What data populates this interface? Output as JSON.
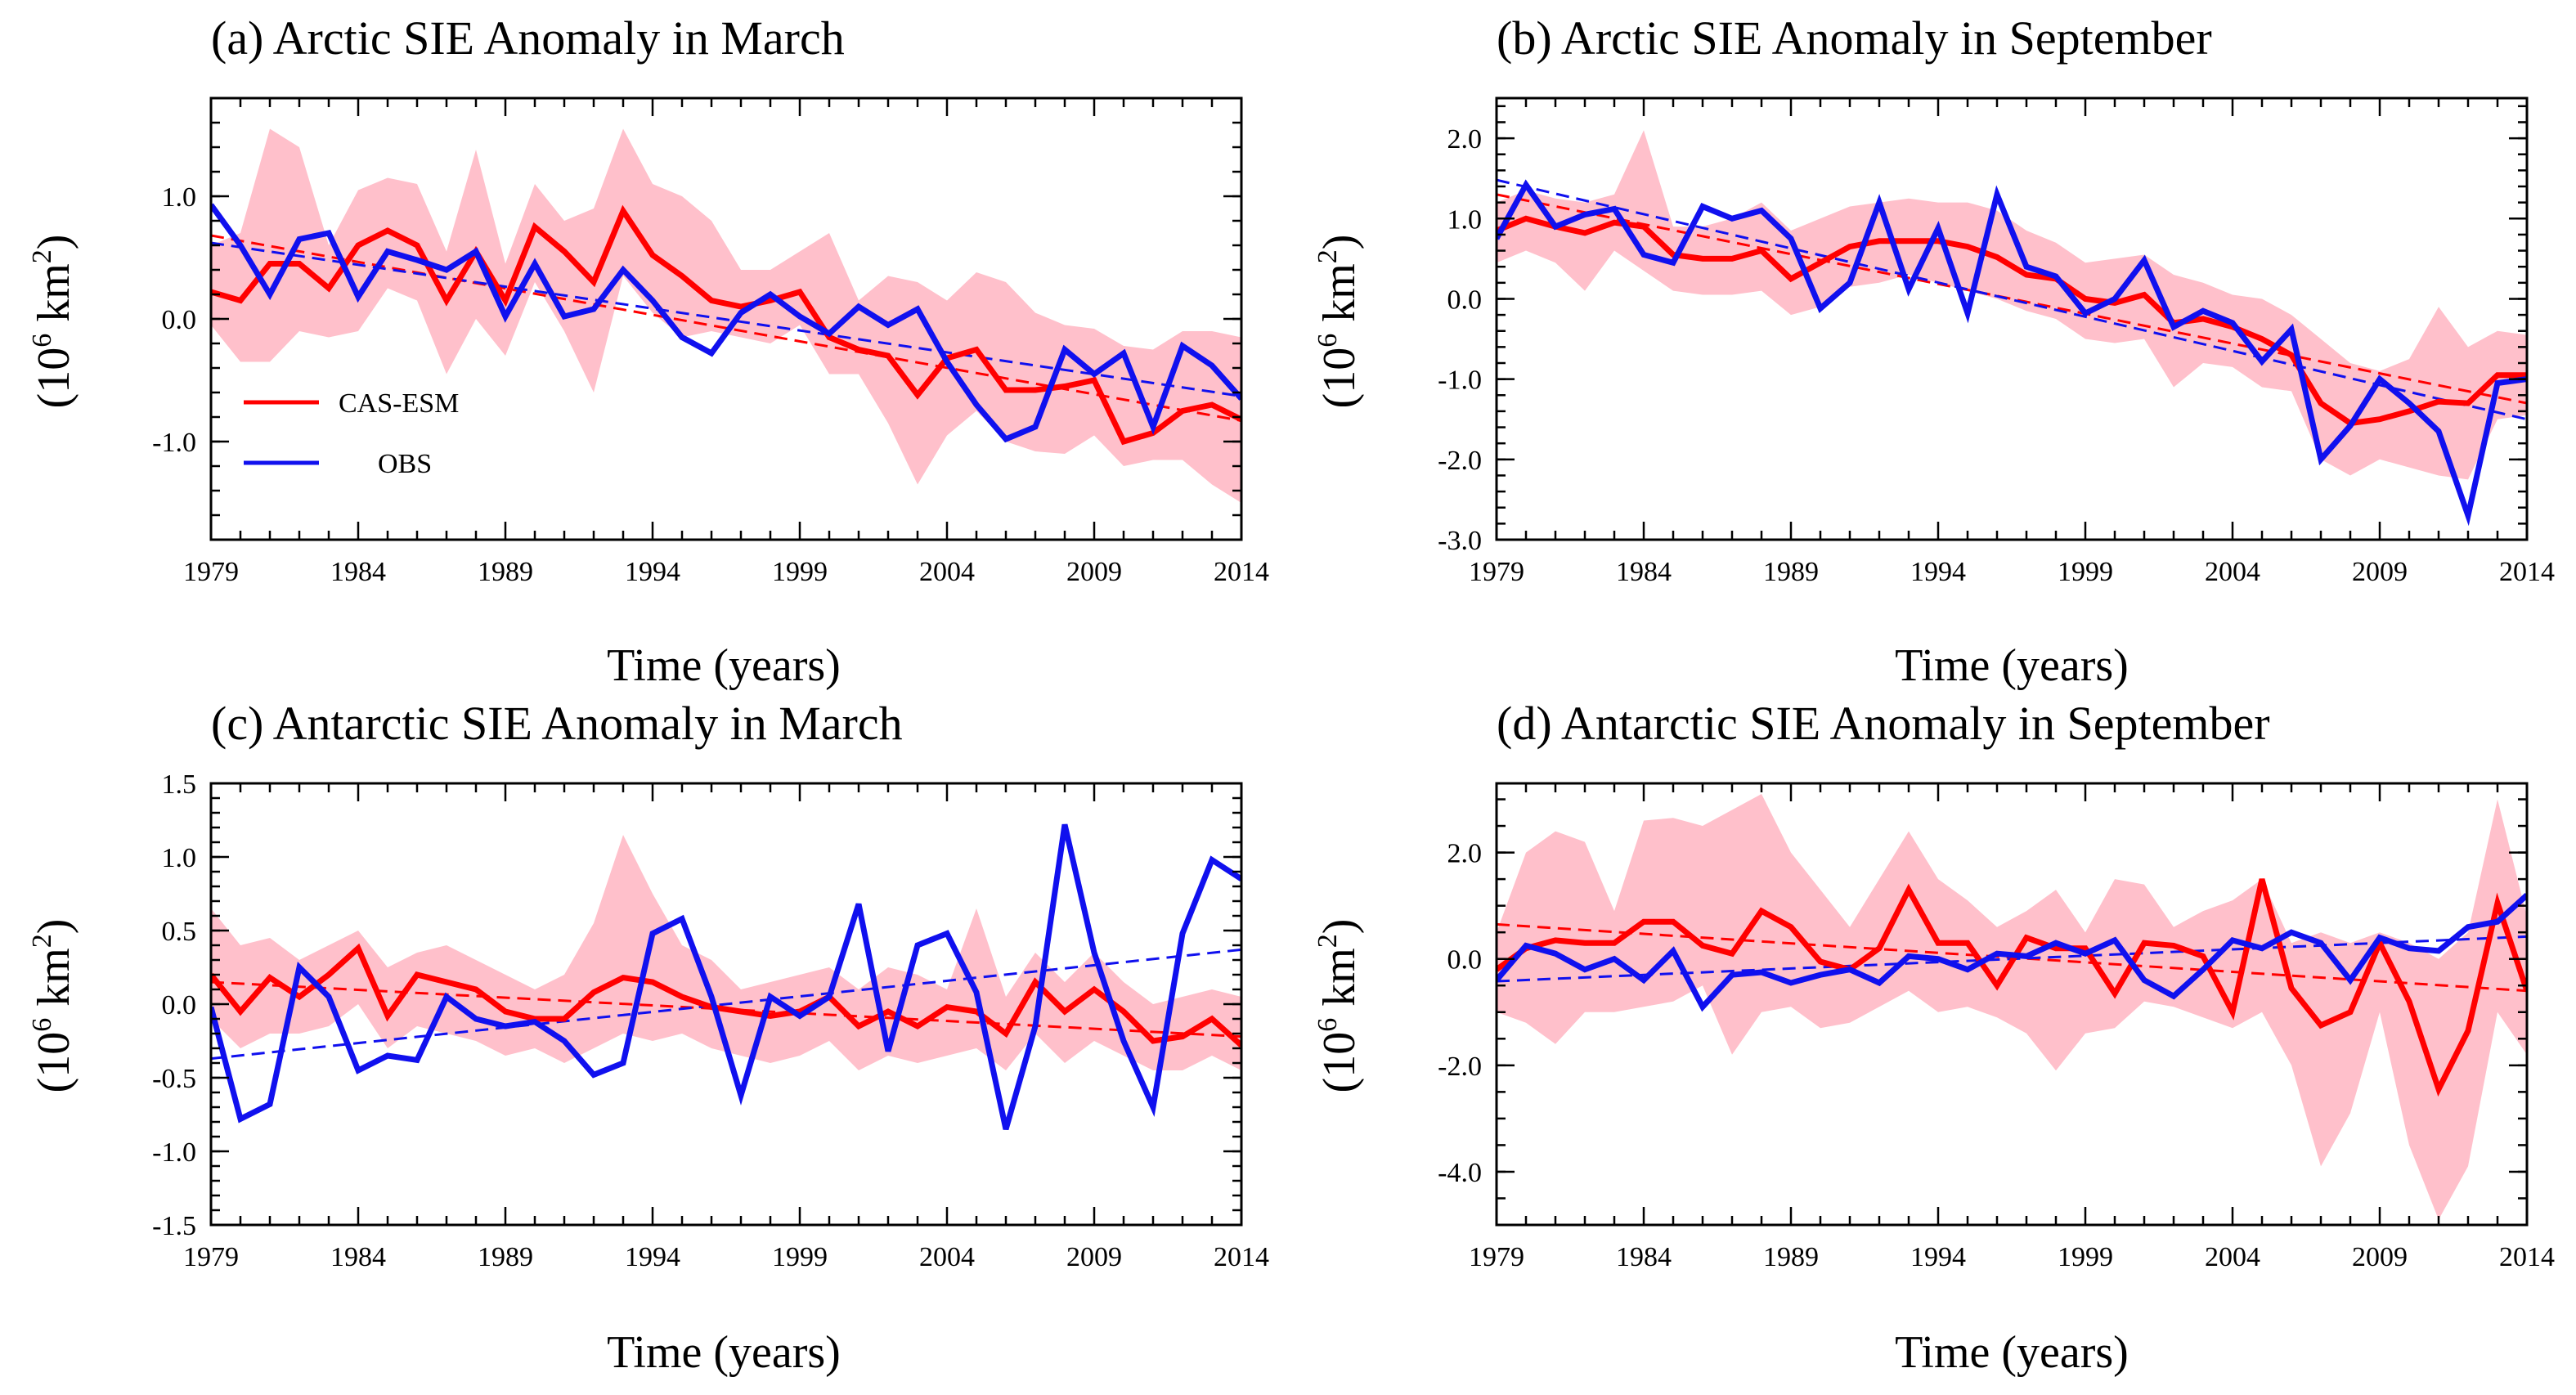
{
  "colors": {
    "model": "#ff0000",
    "obs": "#1010ee",
    "spread": "#ffc0cb"
  },
  "legend": {
    "model": "CAS-ESM",
    "obs": "OBS"
  },
  "chart_data": [
    {
      "type": "line",
      "title": "(a) Arctic SIE Anomaly in March",
      "xlabel": "Time (years)",
      "ylabel": "(10^6 km^2)",
      "xlim": [
        1979,
        2014
      ],
      "ylim": [
        -1.8,
        1.8
      ],
      "xticks": [
        1979,
        1984,
        1989,
        1994,
        1999,
        2004,
        2009,
        2014
      ],
      "xtick_labels": [
        "1979",
        "1984",
        "1989",
        "1994",
        "1999",
        "2004",
        "2009",
        "2014"
      ],
      "yticks": [
        1.0,
        0.0,
        -1.0
      ],
      "ytick_labels": [
        "1.0",
        "0.0",
        "-1.0"
      ],
      "yminor_step": 0.2,
      "has_legend": true,
      "x": [
        1979,
        1980,
        1981,
        1982,
        1983,
        1984,
        1985,
        1986,
        1987,
        1988,
        1989,
        1990,
        1991,
        1992,
        1993,
        1994,
        1995,
        1996,
        1997,
        1998,
        1999,
        2000,
        2001,
        2002,
        2003,
        2004,
        2005,
        2006,
        2007,
        2008,
        2009,
        2010,
        2011,
        2012,
        2013,
        2014
      ],
      "series": [
        {
          "name": "CAS-ESM",
          "values": [
            0.22,
            0.15,
            0.45,
            0.45,
            0.25,
            0.6,
            0.72,
            0.6,
            0.15,
            0.55,
            0.15,
            0.75,
            0.55,
            0.3,
            0.88,
            0.52,
            0.35,
            0.15,
            0.1,
            0.15,
            0.22,
            -0.15,
            -0.25,
            -0.3,
            -0.62,
            -0.32,
            -0.25,
            -0.58,
            -0.58,
            -0.55,
            -0.5,
            -1.0,
            -0.93,
            -0.75,
            -0.7,
            -0.82
          ]
        },
        {
          "name": "OBS",
          "values": [
            0.93,
            0.6,
            0.2,
            0.65,
            0.7,
            0.18,
            0.55,
            0.48,
            0.4,
            0.55,
            0.02,
            0.45,
            0.02,
            0.08,
            0.4,
            0.15,
            -0.15,
            -0.28,
            0.05,
            0.2,
            0.02,
            -0.12,
            0.1,
            -0.05,
            0.08,
            -0.35,
            -0.7,
            -0.98,
            -0.88,
            -0.25,
            -0.45,
            -0.28,
            -0.88,
            -0.22,
            -0.38,
            -0.65
          ]
        },
        {
          "name": "CAS-ESM range upper",
          "values": [
            0.6,
            0.7,
            1.55,
            1.4,
            0.6,
            1.05,
            1.15,
            1.1,
            0.55,
            1.38,
            0.45,
            1.1,
            0.8,
            0.9,
            1.55,
            1.1,
            1.0,
            0.8,
            0.4,
            0.4,
            0.55,
            0.7,
            0.15,
            0.35,
            0.3,
            0.15,
            0.38,
            0.3,
            0.05,
            -0.05,
            -0.08,
            -0.22,
            -0.25,
            -0.1,
            -0.1,
            -0.15
          ]
        },
        {
          "name": "CAS-ESM range lower",
          "values": [
            -0.05,
            -0.35,
            -0.35,
            -0.1,
            -0.15,
            -0.1,
            0.25,
            0.15,
            -0.45,
            0.0,
            -0.3,
            0.3,
            -0.1,
            -0.6,
            0.35,
            0.05,
            -0.15,
            -0.1,
            -0.15,
            -0.2,
            -0.05,
            -0.45,
            -0.45,
            -0.85,
            -1.35,
            -0.95,
            -0.75,
            -1.0,
            -1.08,
            -1.1,
            -0.95,
            -1.2,
            -1.15,
            -1.15,
            -1.35,
            -1.5
          ]
        }
      ],
      "trend_lines": [
        {
          "name": "CAS-ESM trend",
          "x": [
            1979,
            2014
          ],
          "values": [
            0.68,
            -0.83
          ]
        },
        {
          "name": "OBS trend",
          "x": [
            1979,
            2014
          ],
          "values": [
            0.62,
            -0.63
          ]
        }
      ]
    },
    {
      "type": "line",
      "title": "(b) Arctic SIE Anomaly in September",
      "xlabel": "Time (years)",
      "ylabel": "(10^6 km^2)",
      "xlim": [
        1979,
        2014
      ],
      "ylim": [
        -3.0,
        2.5
      ],
      "xticks": [
        1979,
        1984,
        1989,
        1994,
        1999,
        2004,
        2009,
        2014
      ],
      "xtick_labels": [
        "1979",
        "1984",
        "1989",
        "1994",
        "1999",
        "2004",
        "2009",
        "2014"
      ],
      "yticks": [
        2.0,
        1.0,
        0.0,
        -1.0,
        -2.0,
        -3.0
      ],
      "ytick_labels": [
        "2.0",
        "1.0",
        "0.0",
        "-1.0",
        "-2.0",
        "-3.0"
      ],
      "yminor_step": 0.2,
      "has_legend": false,
      "x": [
        1979,
        1980,
        1981,
        1982,
        1983,
        1984,
        1985,
        1986,
        1987,
        1988,
        1989,
        1990,
        1991,
        1992,
        1993,
        1994,
        1995,
        1996,
        1997,
        1998,
        1999,
        2000,
        2001,
        2002,
        2003,
        2004,
        2005,
        2006,
        2007,
        2008,
        2009,
        2010,
        2011,
        2012,
        2013,
        2014
      ],
      "series": [
        {
          "name": "CAS-ESM",
          "values": [
            0.85,
            1.0,
            0.9,
            0.82,
            0.95,
            0.9,
            0.55,
            0.5,
            0.5,
            0.6,
            0.25,
            0.45,
            0.65,
            0.72,
            0.72,
            0.72,
            0.65,
            0.52,
            0.3,
            0.25,
            0.0,
            -0.05,
            0.05,
            -0.3,
            -0.25,
            -0.35,
            -0.5,
            -0.7,
            -1.3,
            -1.55,
            -1.5,
            -1.4,
            -1.28,
            -1.3,
            -0.95,
            -0.95
          ]
        },
        {
          "name": "OBS",
          "values": [
            0.75,
            1.42,
            0.9,
            1.05,
            1.12,
            0.55,
            0.45,
            1.15,
            1.0,
            1.1,
            0.75,
            -0.12,
            0.2,
            1.2,
            0.12,
            0.88,
            -0.18,
            1.3,
            0.4,
            0.28,
            -0.18,
            0.0,
            0.48,
            -0.35,
            -0.15,
            -0.3,
            -0.78,
            -0.38,
            -2.0,
            -1.58,
            -1.0,
            -1.3,
            -1.65,
            -2.7,
            -1.05,
            -1.0
          ]
        },
        {
          "name": "CAS-ESM range upper",
          "values": [
            1.2,
            1.35,
            1.25,
            1.2,
            1.3,
            2.1,
            0.9,
            0.9,
            1.0,
            1.2,
            0.85,
            1.0,
            1.15,
            1.2,
            1.25,
            1.2,
            1.2,
            1.1,
            0.85,
            0.7,
            0.45,
            0.5,
            0.55,
            0.3,
            0.2,
            0.05,
            0.0,
            -0.2,
            -0.5,
            -0.8,
            -0.9,
            -0.75,
            -0.1,
            -0.6,
            -0.4,
            -0.45
          ]
        },
        {
          "name": "CAS-ESM range lower",
          "values": [
            0.45,
            0.6,
            0.45,
            0.1,
            0.6,
            0.35,
            0.1,
            0.05,
            0.05,
            0.1,
            -0.2,
            -0.1,
            0.15,
            0.2,
            0.3,
            0.2,
            0.1,
            0.0,
            -0.15,
            -0.25,
            -0.5,
            -0.55,
            -0.5,
            -1.1,
            -0.8,
            -0.85,
            -1.1,
            -1.15,
            -2.0,
            -2.2,
            -2.0,
            -2.1,
            -2.2,
            -2.25,
            -1.5,
            -1.45
          ]
        }
      ],
      "trend_lines": [
        {
          "name": "CAS-ESM trend",
          "x": [
            1979,
            2014
          ],
          "values": [
            1.3,
            -1.3
          ]
        },
        {
          "name": "OBS trend",
          "x": [
            1979,
            2014
          ],
          "values": [
            1.48,
            -1.5
          ]
        }
      ]
    },
    {
      "type": "line",
      "title": "(c) Antarctic SIE Anomaly in March",
      "xlabel": "Time (years)",
      "ylabel": "(10^6 km^2)",
      "xlim": [
        1979,
        2014
      ],
      "ylim": [
        -1.5,
        1.5
      ],
      "xticks": [
        1979,
        1984,
        1989,
        1994,
        1999,
        2004,
        2009,
        2014
      ],
      "xtick_labels": [
        "1979",
        "1984",
        "1989",
        "1994",
        "1999",
        "2004",
        "2009",
        "2014"
      ],
      "yticks": [
        1.5,
        1.0,
        0.5,
        0.0,
        -0.5,
        -1.0,
        -1.5
      ],
      "ytick_labels": [
        "1.5",
        "1.0",
        "0.5",
        "0.0",
        "-0.5",
        "-1.0",
        "-1.5"
      ],
      "yminor_step": 0.1,
      "has_legend": false,
      "x": [
        1979,
        1980,
        1981,
        1982,
        1983,
        1984,
        1985,
        1986,
        1987,
        1988,
        1989,
        1990,
        1991,
        1992,
        1993,
        1994,
        1995,
        1996,
        1997,
        1998,
        1999,
        2000,
        2001,
        2002,
        2003,
        2004,
        2005,
        2006,
        2007,
        2008,
        2009,
        2010,
        2011,
        2012,
        2013,
        2014
      ],
      "series": [
        {
          "name": "CAS-ESM",
          "values": [
            0.2,
            -0.05,
            0.18,
            0.05,
            0.2,
            0.38,
            -0.08,
            0.2,
            0.15,
            0.1,
            -0.05,
            -0.1,
            -0.1,
            0.08,
            0.18,
            0.15,
            0.05,
            -0.02,
            -0.05,
            -0.08,
            -0.05,
            0.05,
            -0.15,
            -0.05,
            -0.15,
            -0.02,
            -0.05,
            -0.2,
            0.15,
            -0.05,
            0.1,
            -0.05,
            -0.25,
            -0.22,
            -0.1,
            -0.28
          ]
        },
        {
          "name": "OBS",
          "values": [
            -0.02,
            -0.78,
            -0.68,
            0.25,
            0.05,
            -0.45,
            -0.35,
            -0.38,
            0.05,
            -0.1,
            -0.15,
            -0.12,
            -0.25,
            -0.48,
            -0.4,
            0.48,
            0.58,
            0.05,
            -0.62,
            0.05,
            -0.08,
            0.05,
            0.68,
            -0.32,
            0.4,
            0.48,
            0.08,
            -0.85,
            -0.15,
            1.22,
            0.35,
            -0.25,
            -0.7,
            0.48,
            0.98,
            0.85
          ]
        },
        {
          "name": "CAS-ESM range upper",
          "values": [
            0.65,
            0.4,
            0.45,
            0.3,
            0.4,
            0.5,
            0.25,
            0.35,
            0.4,
            0.3,
            0.2,
            0.1,
            0.2,
            0.55,
            1.15,
            0.75,
            0.4,
            0.3,
            0.1,
            0.15,
            0.2,
            0.25,
            0.1,
            0.25,
            0.2,
            0.1,
            0.65,
            0.05,
            0.35,
            0.15,
            0.35,
            0.15,
            0.0,
            0.05,
            0.1,
            0.05
          ]
        },
        {
          "name": "CAS-ESM range lower",
          "values": [
            -0.1,
            -0.3,
            -0.2,
            -0.2,
            -0.15,
            0.0,
            -0.3,
            -0.15,
            -0.2,
            -0.25,
            -0.35,
            -0.3,
            -0.4,
            -0.3,
            -0.2,
            -0.25,
            -0.2,
            -0.3,
            -0.35,
            -0.4,
            -0.35,
            -0.25,
            -0.45,
            -0.35,
            -0.4,
            -0.35,
            -0.3,
            -0.45,
            -0.2,
            -0.4,
            -0.25,
            -0.35,
            -0.45,
            -0.45,
            -0.35,
            -0.45
          ]
        }
      ],
      "trend_lines": [
        {
          "name": "CAS-ESM trend",
          "x": [
            1979,
            2014
          ],
          "values": [
            0.15,
            -0.22
          ]
        },
        {
          "name": "OBS trend",
          "x": [
            1979,
            2014
          ],
          "values": [
            -0.37,
            0.37
          ]
        }
      ]
    },
    {
      "type": "line",
      "title": "(d) Antarctic SIE Anomaly in September",
      "xlabel": "Time (years)",
      "ylabel": "(10^6 km^2)",
      "xlim": [
        1979,
        2014
      ],
      "ylim": [
        -5.0,
        3.3
      ],
      "xticks": [
        1979,
        1984,
        1989,
        1994,
        1999,
        2004,
        2009,
        2014
      ],
      "xtick_labels": [
        "1979",
        "1984",
        "1989",
        "1994",
        "1999",
        "2004",
        "2009",
        "2014"
      ],
      "yticks": [
        2.0,
        0.0,
        -2.0,
        -4.0
      ],
      "ytick_labels": [
        "2.0",
        "0.0",
        "-2.0",
        "-4.0"
      ],
      "yminor_step": 0.5,
      "has_legend": false,
      "x": [
        1979,
        1980,
        1981,
        1982,
        1983,
        1984,
        1985,
        1986,
        1987,
        1988,
        1989,
        1990,
        1991,
        1992,
        1993,
        1994,
        1995,
        1996,
        1997,
        1998,
        1999,
        2000,
        2001,
        2002,
        2003,
        2004,
        2005,
        2006,
        2007,
        2008,
        2009,
        2010,
        2011,
        2012,
        2013,
        2014
      ],
      "series": [
        {
          "name": "CAS-ESM",
          "values": [
            -0.2,
            0.2,
            0.35,
            0.3,
            0.3,
            0.7,
            0.7,
            0.25,
            0.1,
            0.9,
            0.6,
            -0.05,
            -0.2,
            0.2,
            1.3,
            0.3,
            0.3,
            -0.5,
            0.4,
            0.2,
            0.2,
            -0.65,
            0.3,
            0.25,
            0.05,
            -1.0,
            1.5,
            -0.55,
            -1.25,
            -1.0,
            0.3,
            -0.8,
            -2.45,
            -1.35,
            1.05,
            -0.6
          ]
        },
        {
          "name": "OBS",
          "values": [
            -0.4,
            0.25,
            0.1,
            -0.2,
            0.0,
            -0.4,
            0.15,
            -0.9,
            -0.3,
            -0.25,
            -0.45,
            -0.3,
            -0.2,
            -0.45,
            0.05,
            0.0,
            -0.2,
            0.1,
            0.05,
            0.3,
            0.1,
            0.35,
            -0.4,
            -0.7,
            -0.2,
            0.35,
            0.2,
            0.5,
            0.3,
            -0.4,
            0.4,
            0.2,
            0.15,
            0.6,
            0.7,
            1.2
          ]
        },
        {
          "name": "CAS-ESM range upper",
          "values": [
            0.5,
            2.0,
            2.4,
            2.2,
            0.9,
            2.6,
            2.65,
            2.5,
            2.8,
            3.1,
            2.0,
            1.3,
            0.6,
            1.5,
            2.4,
            1.5,
            1.1,
            0.6,
            0.9,
            1.3,
            0.5,
            1.5,
            1.4,
            0.6,
            0.9,
            1.1,
            1.5,
            0.3,
            0.5,
            0.3,
            0.5,
            0.3,
            0.0,
            0.5,
            3.0,
            0.8
          ]
        },
        {
          "name": "CAS-ESM range lower",
          "values": [
            -1.0,
            -1.2,
            -1.6,
            -1.0,
            -1.0,
            -0.9,
            -0.8,
            -0.5,
            -1.8,
            -1.0,
            -0.9,
            -1.3,
            -1.2,
            -0.9,
            -0.6,
            -1.0,
            -0.9,
            -1.1,
            -1.4,
            -2.1,
            -1.4,
            -1.3,
            -0.8,
            -0.9,
            -1.1,
            -1.3,
            -1.0,
            -2.0,
            -3.9,
            -2.9,
            -1.0,
            -3.5,
            -4.9,
            -3.9,
            -1.0,
            -1.8
          ]
        }
      ],
      "trend_lines": [
        {
          "name": "CAS-ESM trend",
          "x": [
            1979,
            2014
          ],
          "values": [
            0.65,
            -0.6
          ]
        },
        {
          "name": "OBS trend",
          "x": [
            1979,
            2014
          ],
          "values": [
            -0.42,
            0.42
          ]
        }
      ]
    }
  ]
}
